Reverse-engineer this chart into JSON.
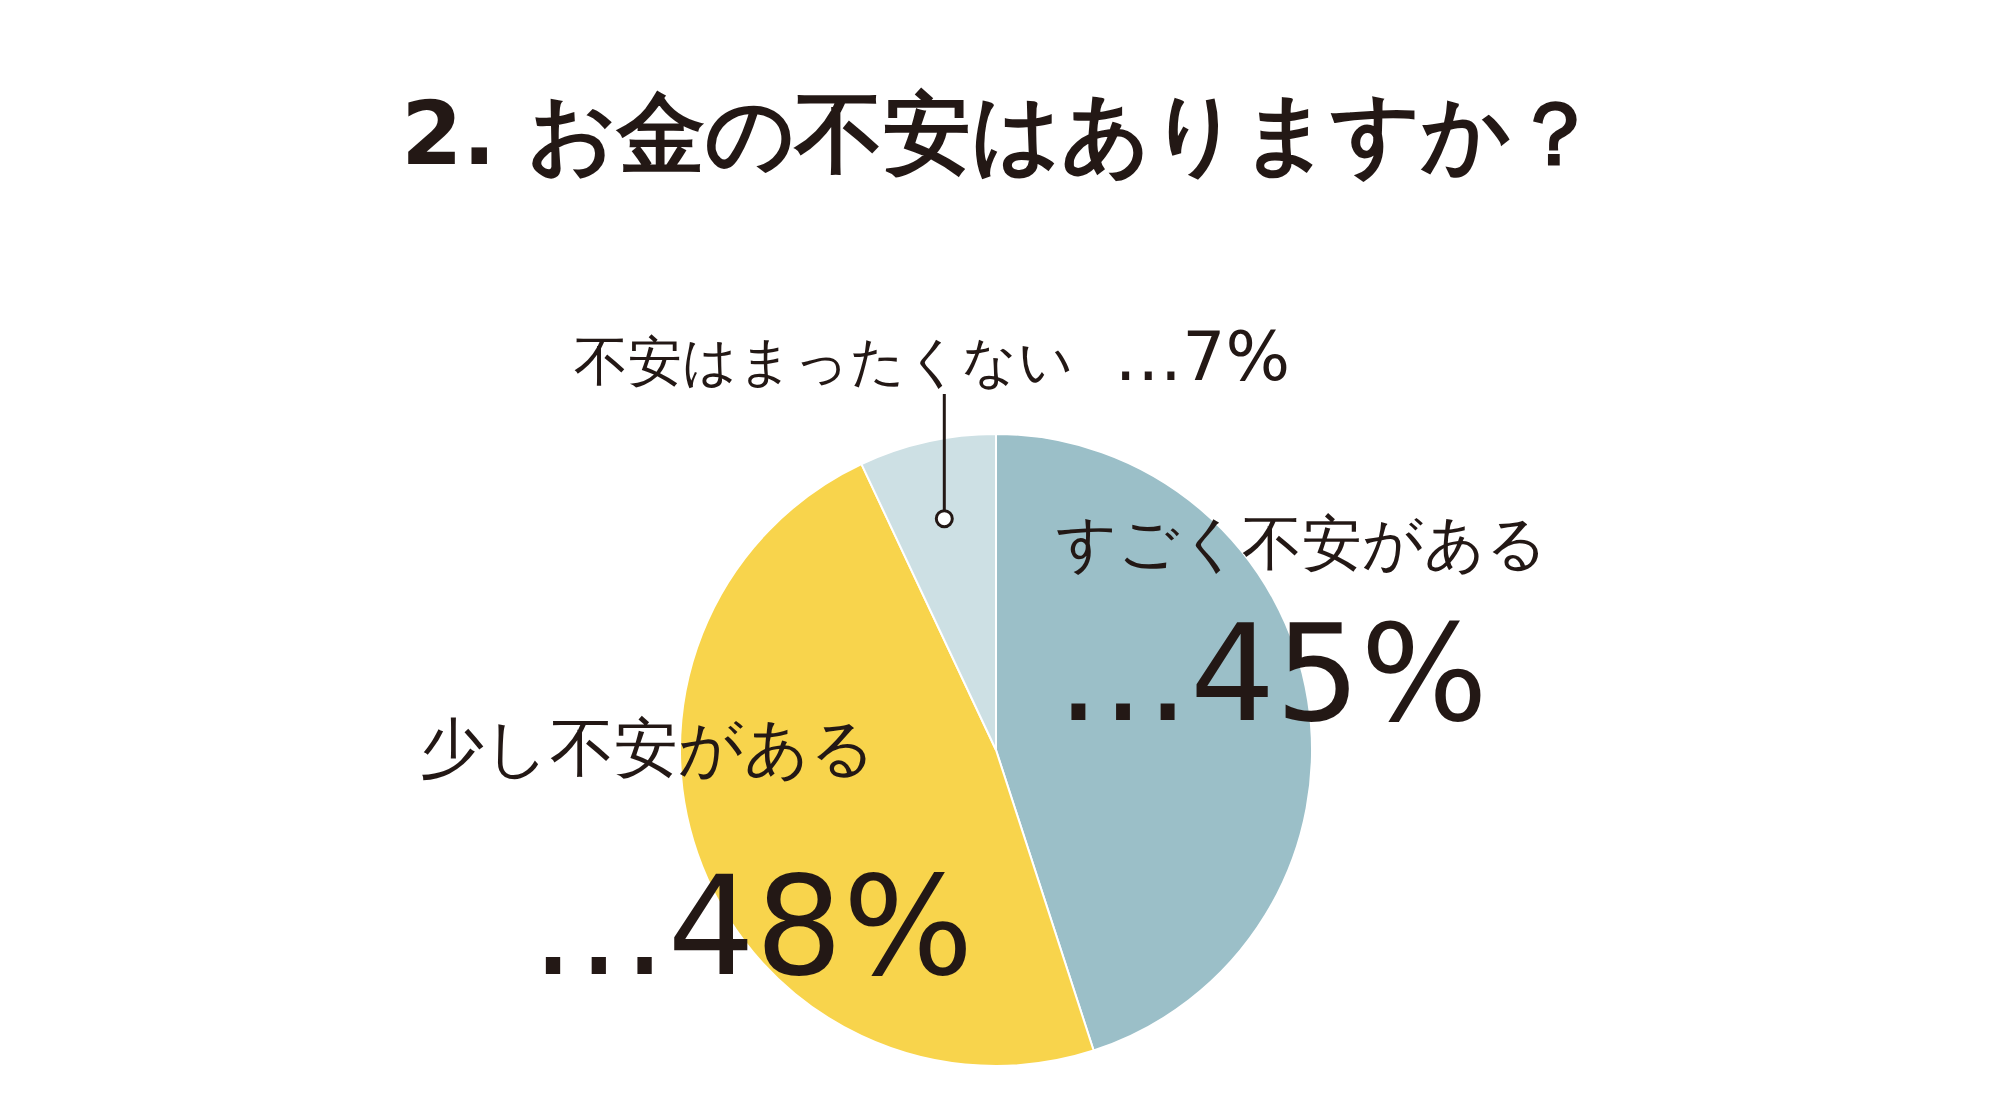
{
  "chart_data": {
    "type": "pie",
    "title": "2. お金の不安はありますか？",
    "categories": [
      "すごく不安がある",
      "少し不安がある",
      "不安はまったくない"
    ],
    "values": [
      45,
      48,
      7
    ],
    "colors": [
      "#9bbfc8",
      "#f8d44c",
      "#cde0e4"
    ],
    "value_labels": [
      "…45%",
      "…48%",
      "…7%"
    ]
  }
}
